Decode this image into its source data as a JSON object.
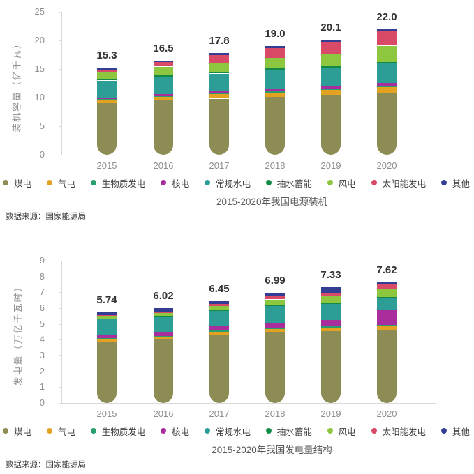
{
  "page": {
    "background": "#ffffff",
    "axis_color": "#d9d9d9",
    "tick_text_color": "#8f8f8f",
    "total_label_color": "#333333"
  },
  "chart_data": [
    {
      "type": "bar",
      "stacked": true,
      "title": "2015-2020年我国电源装机",
      "source": "数据来源：国家能源局",
      "ylabel": "装机容量（亿千瓦）",
      "ylim": [
        0,
        25
      ],
      "ytick_step": 5,
      "ytick_labels": [
        "0",
        "5",
        "10",
        "15",
        "20",
        "25"
      ],
      "grid": false,
      "legend_position": "bottom",
      "categories": [
        "2015",
        "2016",
        "2017",
        "2018",
        "2019",
        "2020"
      ],
      "totals": [
        "15.3",
        "16.5",
        "17.8",
        "19.0",
        "20.1",
        "22.0"
      ],
      "series": [
        {
          "name": "煤电",
          "color": "#8e8c55",
          "values": [
            9.0,
            9.46,
            9.81,
            10.08,
            10.41,
            10.8
          ]
        },
        {
          "name": "气电",
          "color": "#e3a321",
          "values": [
            0.66,
            0.7,
            0.76,
            0.84,
            0.9,
            0.98
          ]
        },
        {
          "name": "生物质发电",
          "color": "#2a9d6e",
          "values": [
            0.1,
            0.12,
            0.15,
            0.18,
            0.23,
            0.3
          ]
        },
        {
          "name": "核电",
          "color": "#a92d9d",
          "values": [
            0.27,
            0.34,
            0.36,
            0.45,
            0.49,
            0.5
          ]
        },
        {
          "name": "常规水电",
          "color": "#2d9e96",
          "values": [
            2.96,
            3.05,
            3.13,
            3.22,
            3.26,
            3.38
          ]
        },
        {
          "name": "抽水蓄能",
          "color": "#128a45",
          "values": [
            0.23,
            0.27,
            0.29,
            0.3,
            0.3,
            0.31
          ]
        },
        {
          "name": "风电",
          "color": "#8dc63f",
          "values": [
            1.29,
            1.49,
            1.64,
            1.84,
            2.1,
            2.81
          ]
        },
        {
          "name": "太阳能发电",
          "color": "#d84a68",
          "values": [
            0.43,
            0.78,
            1.3,
            1.74,
            2.04,
            2.53
          ]
        },
        {
          "name": "其他",
          "color": "#333d94",
          "values": [
            0.36,
            0.29,
            0.36,
            0.35,
            0.37,
            0.39
          ]
        }
      ]
    },
    {
      "type": "bar",
      "stacked": true,
      "title": "2015-2020年我国发电量结构",
      "source": "数据来源：国家能源局",
      "ylabel": "发电量（万亿千瓦时）",
      "ylim": [
        0,
        9
      ],
      "ytick_step": 1,
      "ytick_labels": [
        "0",
        "1",
        "2",
        "3",
        "4",
        "5",
        "6",
        "7",
        "8",
        "9"
      ],
      "grid": false,
      "legend_position": "bottom",
      "categories": [
        "2015",
        "2016",
        "2017",
        "2018",
        "2019",
        "2020"
      ],
      "totals": [
        "5.74",
        "6.02",
        "6.45",
        "6.99",
        "7.33",
        "7.62"
      ],
      "series": [
        {
          "name": "煤电",
          "color": "#8e8c55",
          "values": [
            3.9,
            4.0,
            4.3,
            4.45,
            4.55,
            4.6
          ]
        },
        {
          "name": "气电",
          "color": "#e3a321",
          "values": [
            0.16,
            0.2,
            0.21,
            0.22,
            0.23,
            0.28
          ]
        },
        {
          "name": "生物质发电",
          "color": "#2a9d6e",
          "values": [
            0.05,
            0.05,
            0.08,
            0.09,
            0.11,
            0.05
          ]
        },
        {
          "name": "核电",
          "color": "#a92d9d",
          "values": [
            0.2,
            0.25,
            0.25,
            0.29,
            0.35,
            0.92
          ]
        },
        {
          "name": "常规水电",
          "color": "#2d9e96",
          "values": [
            1.0,
            0.95,
            1.0,
            1.1,
            1.05,
            0.82
          ]
        },
        {
          "name": "抽水蓄能",
          "color": "#128a45",
          "values": [
            0.02,
            0.02,
            0.02,
            0.03,
            0.03,
            0.03
          ]
        },
        {
          "name": "风电",
          "color": "#8dc63f",
          "values": [
            0.2,
            0.22,
            0.27,
            0.37,
            0.41,
            0.52
          ]
        },
        {
          "name": "太阳能发电",
          "color": "#d84a68",
          "values": [
            0.04,
            0.07,
            0.12,
            0.18,
            0.22,
            0.27
          ]
        },
        {
          "name": "其他",
          "color": "#333d94",
          "values": [
            0.17,
            0.26,
            0.2,
            0.26,
            0.38,
            0.13
          ]
        }
      ]
    }
  ]
}
